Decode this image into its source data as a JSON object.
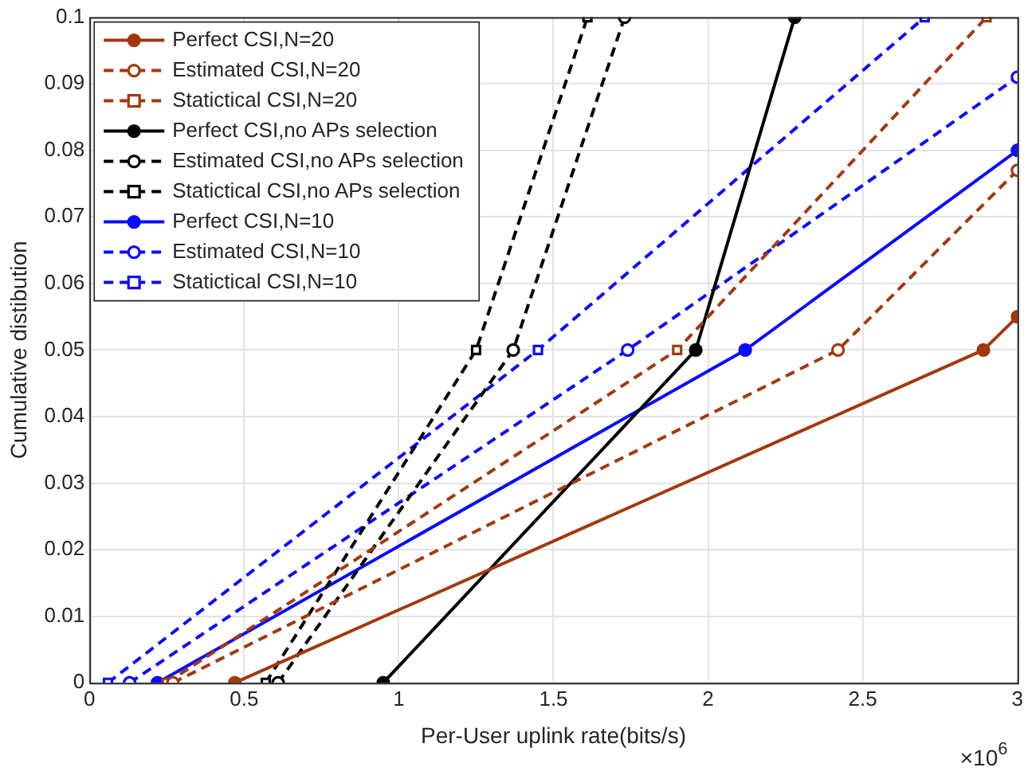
{
  "chart_data": {
    "type": "line",
    "xlabel": "Per-User uplink rate(bits/s)",
    "ylabel": "Cumulative distibution",
    "annotations": [
      "×10$^{6}$"
    ],
    "xlim": [
      0,
      3
    ],
    "xticks": [
      0,
      0.5,
      1,
      1.5,
      2,
      2.5,
      3
    ],
    "ylim": [
      0,
      0.1
    ],
    "yticks": [
      0,
      0.01,
      0.02,
      0.03,
      0.04,
      0.05,
      0.06,
      0.07,
      0.08,
      0.09,
      0.1
    ],
    "grid": true,
    "legend": "top left",
    "series": [
      {
        "name": "Perfect CSI,N=20",
        "color": "#a2390f",
        "marker": "circle",
        "line_style": "solid",
        "x": [
          0.47,
          2.89,
          3
        ],
        "values": [
          0,
          0.05,
          0.055
        ]
      },
      {
        "name": "Estimated CSI,N=20",
        "color": "#a2390f",
        "marker": "circle",
        "line_style": "dashed",
        "x": [
          0.27,
          2.42,
          3
        ],
        "values": [
          0,
          0.05,
          0.077
        ]
      },
      {
        "name": "Statictical CSI,N=20",
        "color": "#a2390f",
        "marker": "square",
        "line_style": "dashed",
        "x": [
          0.25,
          1.9,
          2.9
        ],
        "values": [
          0,
          0.05,
          0.1
        ]
      },
      {
        "name": "Perfect CSI,no APs selection",
        "color": "#000000",
        "marker": "circle",
        "line_style": "solid",
        "x": [
          0.95,
          1.96,
          2.28
        ],
        "values": [
          0,
          0.05,
          0.1
        ]
      },
      {
        "name": "Estimated CSI,no APs selection",
        "color": "#000000",
        "marker": "circle",
        "line_style": "dashed",
        "x": [
          0.61,
          1.37,
          1.73
        ],
        "values": [
          0,
          0.05,
          0.1
        ]
      },
      {
        "name": "Statictical CSI,no APs selection",
        "color": "#000000",
        "marker": "square",
        "line_style": "dashed",
        "x": [
          0.57,
          1.25,
          1.61
        ],
        "values": [
          0,
          0.05,
          0.1
        ]
      },
      {
        "name": "Perfect CSI,N=10",
        "color": "#0b0bff",
        "marker": "circle",
        "line_style": "solid",
        "x": [
          0.22,
          2.12,
          3
        ],
        "values": [
          0,
          0.05,
          0.08
        ]
      },
      {
        "name": "Estimated CSI,N=10",
        "color": "#0b0bff",
        "marker": "circle",
        "line_style": "dashed",
        "x": [
          0.13,
          1.74,
          3
        ],
        "values": [
          0,
          0.05,
          0.091
        ]
      },
      {
        "name": "Statictical CSI,N=10",
        "color": "#0b0bff",
        "marker": "square",
        "line_style": "dashed",
        "x": [
          0.06,
          1.45,
          2.7
        ],
        "values": [
          0,
          0.05,
          0.1
        ]
      }
    ]
  }
}
